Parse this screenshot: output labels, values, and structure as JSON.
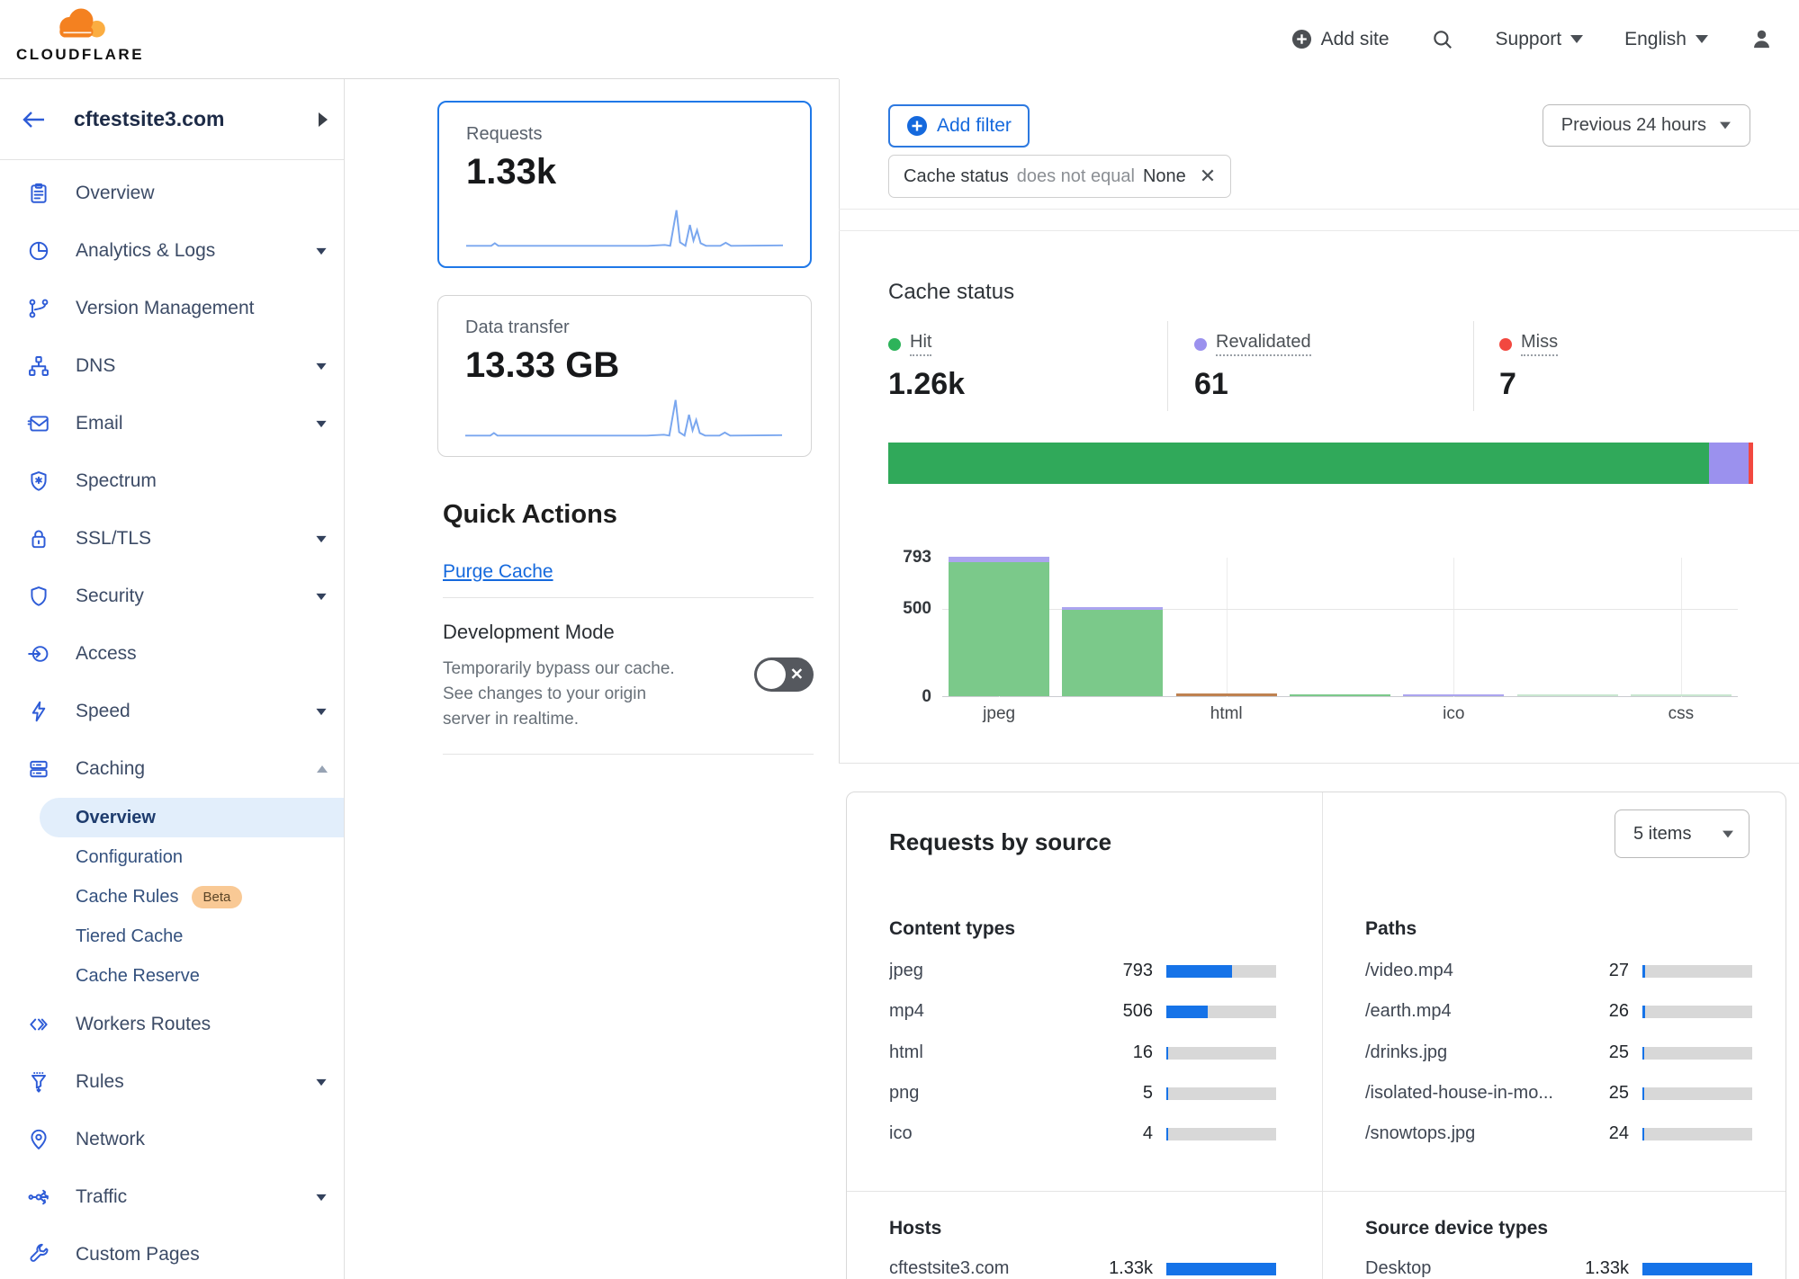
{
  "topbar": {
    "brand": "CLOUDFLARE",
    "add_site": "Add site",
    "support": "Support",
    "language": "English"
  },
  "sidebar": {
    "site": "cftestsite3.com",
    "items": [
      {
        "label": "Overview",
        "icon": "clipboard"
      },
      {
        "label": "Analytics & Logs",
        "icon": "pie-chart",
        "caret": "down"
      },
      {
        "label": "Version Management",
        "icon": "branch"
      },
      {
        "label": "DNS",
        "icon": "dns-tree",
        "caret": "down"
      },
      {
        "label": "Email",
        "icon": "envelope",
        "caret": "down"
      },
      {
        "label": "Spectrum",
        "icon": "spectrum-shield"
      },
      {
        "label": "SSL/TLS",
        "icon": "lock",
        "caret": "down"
      },
      {
        "label": "Security",
        "icon": "shield",
        "caret": "down"
      },
      {
        "label": "Access",
        "icon": "access-arrow"
      },
      {
        "label": "Speed",
        "icon": "bolt",
        "caret": "down"
      },
      {
        "label": "Caching",
        "icon": "server-stack",
        "caret": "up",
        "children": [
          {
            "label": "Overview",
            "active": true
          },
          {
            "label": "Configuration"
          },
          {
            "label": "Cache Rules",
            "badge": "Beta"
          },
          {
            "label": "Tiered Cache"
          },
          {
            "label": "Cache Reserve"
          }
        ]
      },
      {
        "label": "Workers Routes",
        "icon": "code-brackets"
      },
      {
        "label": "Rules",
        "icon": "funnel",
        "caret": "down"
      },
      {
        "label": "Network",
        "icon": "location-pin"
      },
      {
        "label": "Traffic",
        "icon": "traffic-split",
        "caret": "down"
      },
      {
        "label": "Custom Pages",
        "icon": "wrench"
      }
    ]
  },
  "metrics": {
    "requests": {
      "label": "Requests",
      "value": "1.33k"
    },
    "data_transfer": {
      "label": "Data transfer",
      "value": "13.33 GB"
    }
  },
  "quick_actions": {
    "title": "Quick Actions",
    "purge_label": "Purge Cache",
    "dev_mode": {
      "title": "Development Mode",
      "description": "Temporarily bypass our cache. See changes to your origin server in realtime.",
      "state": "off"
    }
  },
  "filters": {
    "add_filter_label": "Add filter",
    "chip": {
      "field": "Cache status",
      "operator": "does not equal",
      "value": "None"
    },
    "time_range": "Previous 24 hours"
  },
  "cache_status": {
    "title": "Cache status",
    "stats": [
      {
        "label": "Hit",
        "value": "1.26k",
        "color": "#2db35a"
      },
      {
        "label": "Revalidated",
        "value": "61",
        "color": "#9b91ee"
      },
      {
        "label": "Miss",
        "value": "7",
        "color": "#f2483f"
      }
    ]
  },
  "chart_data": [
    {
      "type": "bar",
      "subtype": "horizontal-stacked-percentage",
      "title": "Cache status distribution",
      "series": [
        {
          "name": "Hit",
          "value": 1260,
          "color": "#30a95a"
        },
        {
          "name": "Revalidated",
          "value": 61,
          "color": "#9b91ee"
        },
        {
          "name": "Miss",
          "value": 7,
          "color": "#f2483f"
        }
      ]
    },
    {
      "type": "bar",
      "title": "Cache status by content type",
      "ylim": [
        0,
        793
      ],
      "y_ticks": [
        {
          "label": "793",
          "value": 793
        },
        {
          "label": "500",
          "value": 500
        },
        {
          "label": "0",
          "value": 0
        }
      ],
      "x_tick_labels": [
        "jpeg",
        "html",
        "ico",
        "css"
      ],
      "bars": [
        {
          "tick_label": "jpeg",
          "segments": [
            {
              "color": "#7bc98a",
              "value": 762
            },
            {
              "color": "#aba4ef",
              "value": 31
            }
          ]
        },
        {
          "tick_label": "",
          "segments": [
            {
              "color": "#7bc98a",
              "value": 490
            },
            {
              "color": "#aba4ef",
              "value": 16
            }
          ]
        },
        {
          "tick_label": "html",
          "segments": [
            {
              "color": "#bf8150",
              "value": 14
            }
          ]
        },
        {
          "tick_label": "",
          "segments": [
            {
              "color": "#7bc98a",
              "value": 6
            }
          ]
        },
        {
          "tick_label": "ico",
          "segments": [
            {
              "color": "#aba4ef",
              "value": 5
            }
          ]
        },
        {
          "tick_label": "",
          "segments": [
            {
              "color": "#c9e6d0",
              "value": 3
            }
          ]
        },
        {
          "tick_label": "css",
          "segments": [
            {
              "color": "#c9e6d0",
              "value": 2
            }
          ]
        }
      ],
      "grid": "on"
    }
  ],
  "requests_by_source": {
    "title": "Requests by source",
    "items_select": "5 items",
    "content_types": {
      "title": "Content types",
      "rows": [
        {
          "label": "jpeg",
          "value": "793",
          "pct": 59.7
        },
        {
          "label": "mp4",
          "value": "506",
          "pct": 38.1
        },
        {
          "label": "html",
          "value": "16",
          "pct": 1.5
        },
        {
          "label": "png",
          "value": "5",
          "pct": 0.8
        },
        {
          "label": "ico",
          "value": "4",
          "pct": 0.8
        }
      ]
    },
    "paths": {
      "title": "Paths",
      "rows": [
        {
          "label": "/video.mp4",
          "value": "27",
          "pct": 2.2
        },
        {
          "label": "/earth.mp4",
          "value": "26",
          "pct": 2.1
        },
        {
          "label": "/drinks.jpg",
          "value": "25",
          "pct": 2.0
        },
        {
          "label": "/isolated-house-in-mo...",
          "value": "25",
          "pct": 2.0
        },
        {
          "label": "/snowtops.jpg",
          "value": "24",
          "pct": 1.9
        }
      ]
    },
    "hosts": {
      "title": "Hosts",
      "rows": [
        {
          "label": "cftestsite3.com",
          "value": "1.33k",
          "pct": 100
        }
      ]
    },
    "device_types": {
      "title": "Source device types",
      "rows": [
        {
          "label": "Desktop",
          "value": "1.33k",
          "pct": 100
        }
      ]
    }
  }
}
